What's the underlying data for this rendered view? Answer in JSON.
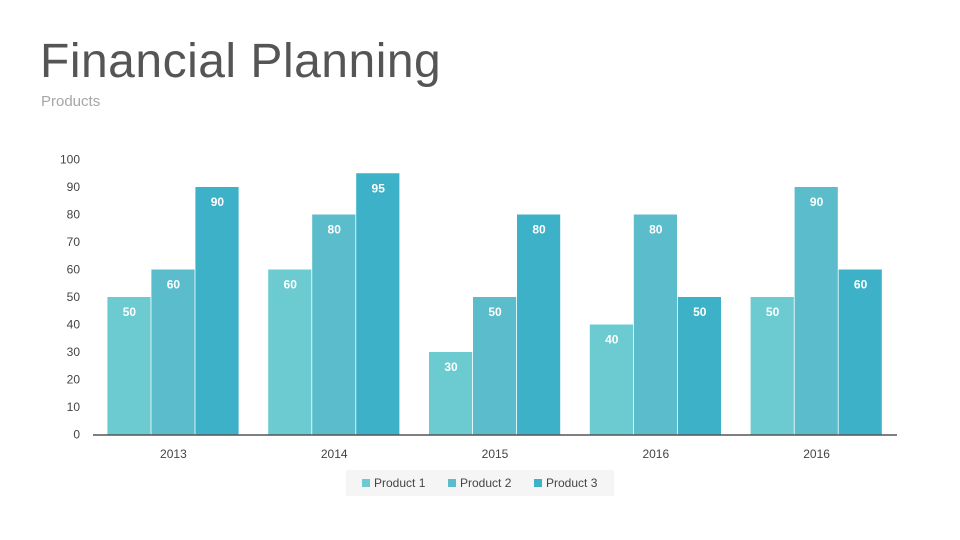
{
  "header": {
    "title": "Financial Planning",
    "subtitle": "Products"
  },
  "chart_data": {
    "type": "bar",
    "categories": [
      "2013",
      "2014",
      "2015",
      "2016",
      "2016"
    ],
    "series": [
      {
        "name": "Product 1",
        "values": [
          50,
          60,
          30,
          40,
          50
        ],
        "color": "#6ccbd0"
      },
      {
        "name": "Product 2",
        "values": [
          60,
          80,
          50,
          80,
          90
        ],
        "color": "#5bbccc"
      },
      {
        "name": "Product 3",
        "values": [
          90,
          95,
          80,
          50,
          60
        ],
        "color": "#3cb1c8"
      }
    ],
    "ylim": [
      0,
      100
    ],
    "yticks": [
      0,
      10,
      20,
      30,
      40,
      50,
      60,
      70,
      80,
      90,
      100
    ],
    "data_labels": true,
    "grid": false,
    "legend_position": "bottom",
    "axis_color": "#555555",
    "legend_background": "#f5f5f5"
  }
}
